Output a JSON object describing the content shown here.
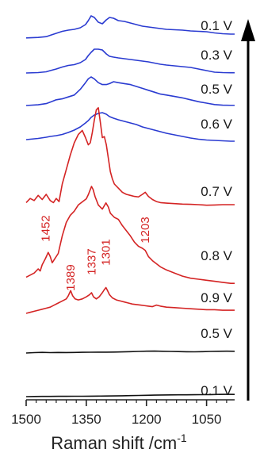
{
  "chart_data": {
    "type": "line",
    "xlabel": "Raman shift /cm",
    "xlabel_sup": "-1",
    "x_ticks": [
      1500,
      1350,
      1200,
      1050
    ],
    "x_tick_labels": [
      "1500",
      "1350",
      "1200",
      "1050"
    ],
    "xlim": [
      1500,
      980
    ],
    "x_reversed": true,
    "y_ticks_shown": false,
    "arrow": "up",
    "colors": {
      "blue": "#2a3bd1",
      "red": "#d42424",
      "black": "#111111"
    },
    "series": [
      {
        "name": "0.1 V",
        "color": "blue",
        "offset": 0,
        "x": [
          1500,
          1470,
          1450,
          1440,
          1425,
          1410,
          1395,
          1380,
          1365,
          1352,
          1345,
          1338,
          1330,
          1320,
          1310,
          1300,
          1292,
          1282,
          1270,
          1255,
          1240,
          1225,
          1210,
          1195,
          1180,
          1165,
          1150,
          1130,
          1110,
          1090,
          1070,
          1050,
          1030,
          1010,
          990,
          980
        ],
        "y": [
          0.2,
          0.8,
          1.8,
          3.5,
          6,
          8.5,
          10,
          11,
          13,
          17,
          22,
          28,
          26,
          20,
          18,
          23,
          26,
          25,
          22,
          21,
          19,
          17,
          15,
          14,
          13,
          12,
          11,
          10.5,
          10,
          9,
          8.5,
          8,
          6.5,
          5.5,
          5,
          5
        ]
      },
      {
        "name": "0.3 V",
        "color": "blue",
        "offset": 0,
        "x": [
          1500,
          1470,
          1450,
          1440,
          1425,
          1410,
          1395,
          1380,
          1365,
          1352,
          1345,
          1338,
          1330,
          1320,
          1310,
          1300,
          1292,
          1282,
          1270,
          1255,
          1240,
          1225,
          1210,
          1195,
          1180,
          1165,
          1150,
          1130,
          1110,
          1090,
          1070,
          1050,
          1030,
          1010,
          990,
          980
        ],
        "y": [
          0,
          0.5,
          1.5,
          3,
          5,
          7.5,
          9.5,
          10.5,
          13,
          17,
          22,
          26,
          30,
          30,
          29,
          24,
          21,
          20,
          19,
          18,
          17,
          16,
          15,
          14,
          12.5,
          11,
          10,
          9,
          8,
          7,
          5,
          3,
          1,
          0.5,
          0.3,
          0.3
        ]
      },
      {
        "name": "0.5 V",
        "color": "blue",
        "offset": 0,
        "x": [
          1500,
          1470,
          1450,
          1440,
          1425,
          1410,
          1395,
          1380,
          1365,
          1352,
          1345,
          1338,
          1330,
          1320,
          1310,
          1300,
          1292,
          1282,
          1270,
          1255,
          1240,
          1225,
          1210,
          1195,
          1180,
          1165,
          1150,
          1130,
          1110,
          1090,
          1070,
          1050,
          1030,
          1010,
          990,
          980
        ],
        "y": [
          0,
          0.8,
          2,
          3.5,
          6,
          7,
          9,
          11,
          17,
          24,
          28,
          30,
          28,
          24,
          22,
          22,
          23,
          25,
          24,
          23,
          22,
          20,
          18,
          16,
          14,
          12,
          11,
          9.5,
          8,
          6,
          4,
          2.5,
          1,
          0.4,
          0.2,
          0.2
        ]
      },
      {
        "name": "0.6 V",
        "color": "blue",
        "offset": 0,
        "x": [
          1500,
          1470,
          1450,
          1440,
          1425,
          1410,
          1395,
          1380,
          1365,
          1352,
          1345,
          1338,
          1330,
          1320,
          1310,
          1300,
          1292,
          1282,
          1270,
          1255,
          1240,
          1225,
          1210,
          1195,
          1180,
          1165,
          1150,
          1130,
          1110,
          1090,
          1070,
          1050,
          1030,
          1010,
          990,
          980
        ],
        "y": [
          0,
          1.5,
          3,
          4,
          5,
          6.5,
          9,
          12,
          16,
          21,
          24,
          28,
          31,
          33,
          34,
          32,
          29,
          27,
          25,
          23,
          21,
          19,
          16,
          14,
          12,
          10,
          8,
          6,
          4,
          2,
          0.5,
          -0.5,
          -1,
          -1.5,
          -2,
          -2
        ]
      },
      {
        "name": "0.7 V",
        "color": "red",
        "offset": 0,
        "x": [
          1500,
          1490,
          1480,
          1470,
          1460,
          1450,
          1440,
          1432,
          1425,
          1418,
          1410,
          1400,
          1390,
          1380,
          1370,
          1360,
          1352,
          1345,
          1340,
          1335,
          1330,
          1325,
          1320,
          1315,
          1310,
          1305,
          1300,
          1295,
          1290,
          1285,
          1280,
          1270,
          1260,
          1250,
          1240,
          1230,
          1220,
          1210,
          1203,
          1195,
          1185,
          1175,
          1165,
          1150,
          1130,
          1110,
          1090,
          1070,
          1050,
          1030,
          1010,
          990,
          980
        ],
        "y": [
          2,
          6,
          4,
          9,
          5,
          10,
          4,
          2,
          6,
          3,
          20,
          34,
          48,
          60,
          68,
          72,
          65,
          58,
          60,
          70,
          82,
          92,
          94,
          80,
          65,
          66,
          58,
          45,
          32,
          25,
          20,
          16,
          12,
          10,
          9,
          8,
          7.5,
          10,
          12,
          8,
          5,
          3,
          2,
          1.5,
          1,
          0.5,
          0.3,
          0,
          -0.5,
          -0.3,
          0,
          0,
          0
        ]
      },
      {
        "name": "0.8 V",
        "color": "red",
        "offset": 0,
        "x": [
          1500,
          1490,
          1480,
          1470,
          1465,
          1460,
          1452,
          1445,
          1440,
          1435,
          1430,
          1420,
          1410,
          1400,
          1390,
          1380,
          1370,
          1360,
          1350,
          1345,
          1340,
          1337,
          1333,
          1328,
          1320,
          1310,
          1301,
          1295,
          1290,
          1280,
          1270,
          1260,
          1250,
          1240,
          1230,
          1220,
          1210,
          1203,
          1195,
          1185,
          1175,
          1165,
          1150,
          1130,
          1110,
          1090,
          1070,
          1050,
          1030,
          1010,
          990,
          980
        ],
        "y": [
          2,
          4,
          6,
          10,
          8,
          14,
          20,
          26,
          22,
          16,
          19,
          25,
          42,
          55,
          62,
          66,
          72,
          75,
          78,
          82,
          87,
          90,
          87,
          80,
          72,
          68,
          74,
          70,
          64,
          60,
          58,
          52,
          47,
          42,
          36,
          32,
          30,
          28,
          22,
          18,
          15,
          12,
          9,
          6,
          3,
          1,
          0,
          -1,
          -2,
          -3,
          -4,
          -4
        ]
      },
      {
        "name": "0.9 V",
        "color": "red",
        "offset": 0,
        "x": [
          1500,
          1490,
          1480,
          1470,
          1460,
          1450,
          1440,
          1430,
          1420,
          1410,
          1400,
          1395,
          1389,
          1384,
          1378,
          1370,
          1360,
          1350,
          1342,
          1337,
          1332,
          1325,
          1318,
          1310,
          1305,
          1301,
          1297,
          1292,
          1285,
          1275,
          1265,
          1255,
          1245,
          1235,
          1225,
          1215,
          1205,
          1195,
          1185,
          1175,
          1165,
          1150,
          1130,
          1110,
          1090,
          1070,
          1050,
          1030,
          1010,
          990,
          980
        ],
        "y": [
          0,
          1,
          2,
          3,
          4,
          5,
          6,
          8,
          10,
          12,
          14,
          17,
          22,
          17,
          14,
          13,
          14,
          16,
          18,
          20,
          16,
          14,
          16,
          20,
          23,
          25,
          22,
          18,
          15,
          13,
          12,
          11,
          10,
          9,
          8.5,
          8,
          7.5,
          7,
          6.5,
          8,
          7,
          6,
          5.5,
          5,
          4.5,
          4,
          3.5,
          3.5,
          3,
          3,
          3
        ]
      },
      {
        "name": "0.5 V",
        "color": "black",
        "offset": 0,
        "x": [
          1500,
          1480,
          1460,
          1440,
          1420,
          1400,
          1380,
          1360,
          1340,
          1320,
          1300,
          1280,
          1260,
          1240,
          1220,
          1200,
          1180,
          1160,
          1140,
          1120,
          1100,
          1080,
          1060,
          1040,
          1020,
          1000,
          980
        ],
        "y": [
          0,
          0.5,
          0.8,
          0.5,
          0.7,
          0.6,
          0.7,
          0.9,
          1,
          1.1,
          1.1,
          1.2,
          1.4,
          1.7,
          2,
          2.3,
          2.4,
          2.2,
          2,
          1.8,
          1.6,
          1.5,
          1.7,
          2,
          2.2,
          2.3,
          2.2
        ]
      },
      {
        "name": "0.1 V",
        "color": "black",
        "offset": 0,
        "x": [
          1500,
          1480,
          1460,
          1440,
          1420,
          1400,
          1380,
          1360,
          1340,
          1320,
          1300,
          1280,
          1260,
          1240,
          1220,
          1200,
          1180,
          1160,
          1140,
          1120,
          1100,
          1080,
          1060,
          1040,
          1020,
          1000,
          980
        ],
        "y": [
          0,
          0.2,
          0.3,
          0.3,
          0.4,
          0.4,
          0.5,
          0.5,
          0.6,
          0.7,
          0.8,
          0.9,
          1.1,
          1.3,
          1.5,
          1.7,
          1.9,
          2.1,
          2.2,
          2.3,
          2.3,
          2.4,
          2.5,
          2.6,
          2.8,
          2.9,
          2.8
        ]
      }
    ],
    "peak_labels": [
      {
        "text": "1452",
        "x": 1452
      },
      {
        "text": "1389",
        "x": 1389
      },
      {
        "text": "1337",
        "x": 1337
      },
      {
        "text": "1301",
        "x": 1301
      },
      {
        "text": "1203",
        "x": 1203
      }
    ]
  }
}
